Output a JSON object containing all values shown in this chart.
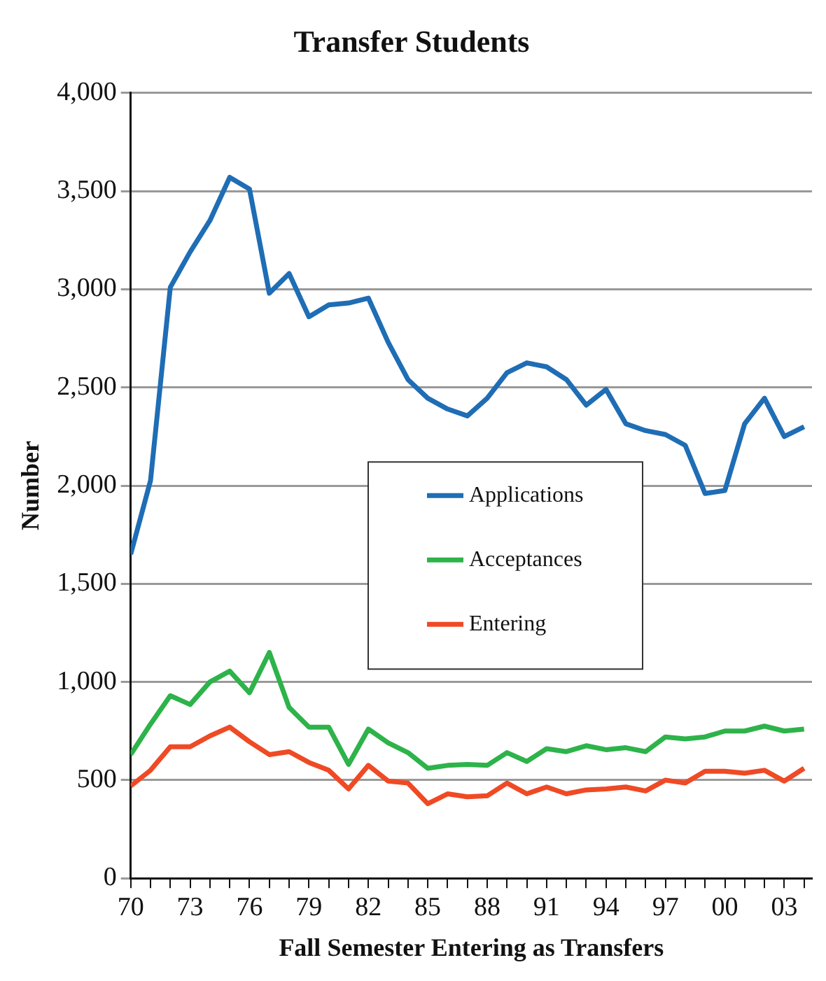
{
  "chart_data": {
    "type": "line",
    "title": "Transfer Students",
    "xlabel": "Fall Semester Entering as Transfers",
    "ylabel": "Number",
    "x": [
      1970,
      1971,
      1972,
      1973,
      1974,
      1975,
      1976,
      1977,
      1978,
      1979,
      1980,
      1981,
      1982,
      1983,
      1984,
      1985,
      1986,
      1987,
      1988,
      1989,
      1990,
      1991,
      1992,
      1993,
      1994,
      1995,
      1996,
      1997,
      1998,
      1999,
      2000,
      2001,
      2002,
      2003,
      2004
    ],
    "series": [
      {
        "name": "Applications",
        "color": "#1f6db5",
        "values": [
          1650,
          2025,
          3010,
          3190,
          3350,
          3570,
          3510,
          2980,
          3080,
          2860,
          2920,
          2930,
          2955,
          2730,
          2540,
          2445,
          2390,
          2355,
          2445,
          2575,
          2625,
          2605,
          2540,
          2410,
          2490,
          2315,
          2280,
          2260,
          2205,
          1960,
          1975,
          2315,
          2445,
          2250,
          2300
        ]
      },
      {
        "name": "Acceptances",
        "color": "#2db34a",
        "values": [
          630,
          785,
          930,
          885,
          1000,
          1055,
          945,
          1150,
          870,
          770,
          770,
          580,
          760,
          690,
          640,
          560,
          575,
          580,
          575,
          640,
          595,
          660,
          645,
          675,
          655,
          665,
          645,
          720,
          710,
          720,
          750,
          750,
          775,
          750,
          760
        ]
      },
      {
        "name": "Entering",
        "color": "#ef4a25",
        "values": [
          470,
          550,
          670,
          670,
          725,
          770,
          695,
          630,
          645,
          590,
          550,
          455,
          575,
          495,
          485,
          380,
          430,
          415,
          420,
          485,
          430,
          465,
          430,
          450,
          455,
          465,
          445,
          500,
          485,
          545,
          545,
          535,
          550,
          495,
          560
        ]
      }
    ],
    "xlim": [
      1970,
      2004.4
    ],
    "xticks": [
      {
        "value": 1970,
        "label": "70"
      },
      {
        "value": 1971,
        "label": null
      },
      {
        "value": 1972,
        "label": null
      },
      {
        "value": 1973,
        "label": "73"
      },
      {
        "value": 1974,
        "label": null
      },
      {
        "value": 1975,
        "label": null
      },
      {
        "value": 1976,
        "label": "76"
      },
      {
        "value": 1977,
        "label": null
      },
      {
        "value": 1978,
        "label": null
      },
      {
        "value": 1979,
        "label": "79"
      },
      {
        "value": 1980,
        "label": null
      },
      {
        "value": 1981,
        "label": null
      },
      {
        "value": 1982,
        "label": "82"
      },
      {
        "value": 1983,
        "label": null
      },
      {
        "value": 1984,
        "label": null
      },
      {
        "value": 1985,
        "label": "85"
      },
      {
        "value": 1986,
        "label": null
      },
      {
        "value": 1987,
        "label": null
      },
      {
        "value": 1988,
        "label": "88"
      },
      {
        "value": 1989,
        "label": null
      },
      {
        "value": 1990,
        "label": null
      },
      {
        "value": 1991,
        "label": "91"
      },
      {
        "value": 1992,
        "label": null
      },
      {
        "value": 1993,
        "label": null
      },
      {
        "value": 1994,
        "label": "94"
      },
      {
        "value": 1995,
        "label": null
      },
      {
        "value": 1996,
        "label": null
      },
      {
        "value": 1997,
        "label": "97"
      },
      {
        "value": 1998,
        "label": null
      },
      {
        "value": 1999,
        "label": null
      },
      {
        "value": 2000,
        "label": "00"
      },
      {
        "value": 2001,
        "label": null
      },
      {
        "value": 2002,
        "label": null
      },
      {
        "value": 2003,
        "label": "03"
      },
      {
        "value": 2004,
        "label": null
      }
    ],
    "ylim": [
      0,
      4000
    ],
    "yticks": [
      {
        "value": 0,
        "label": "0"
      },
      {
        "value": 500,
        "label": "500"
      },
      {
        "value": 1000,
        "label": "1,000"
      },
      {
        "value": 1500,
        "label": "1,500"
      },
      {
        "value": 2000,
        "label": "2,000"
      },
      {
        "value": 2500,
        "label": "2,500"
      },
      {
        "value": 3000,
        "label": "3,000"
      },
      {
        "value": 3500,
        "label": "3,500"
      },
      {
        "value": 4000,
        "label": "4,000"
      }
    ],
    "grid": "y",
    "legend": "center",
    "marker": "none",
    "line_style": "solid"
  }
}
